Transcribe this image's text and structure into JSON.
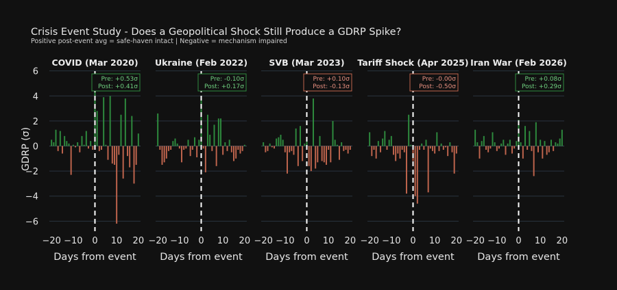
{
  "chart_data": {
    "type": "bar",
    "title": "Crisis Event Study - Does a Geopolitical Shock Still Produce a GDRP Spike?",
    "subtitle": "Positive post-event avg = safe-haven intact | Negative = mechanism impaired",
    "ylabel": "GDRP (σ)",
    "xlabel": "Days from event",
    "ylim": [
      -6.8,
      6.2
    ],
    "xlim": [
      -21,
      21
    ],
    "yticks": [
      6,
      4,
      2,
      0,
      -2,
      -4,
      -6
    ],
    "ytick_labels": [
      "6",
      "4",
      "2",
      "0",
      "−2",
      "−4",
      "−6"
    ],
    "xticks": [
      -20,
      -10,
      0,
      10,
      20
    ],
    "xtick_labels": [
      "−20",
      "−10",
      "0",
      "10",
      "20"
    ],
    "grid": true,
    "colors": {
      "positive": "#2e8b3e",
      "negative": "#c0654d",
      "annot_green_border": "#2e8b3e",
      "annot_green_text": "#6fcf7f",
      "annot_red_border": "#c0654d",
      "annot_red_text": "#e89080",
      "background": "#111111"
    },
    "panels": [
      {
        "title": "COVID (Mar 2020)",
        "annotation": {
          "pre": "Pre: +0.53σ",
          "post": "Post: +0.41σ",
          "color": "green"
        },
        "x": [
          -20,
          -19,
          -18,
          -17,
          -16,
          -15,
          -14,
          -13,
          -12,
          -11,
          -10,
          -9,
          -8,
          -7,
          -6,
          -5,
          -4,
          -3,
          -2,
          -1,
          0,
          1,
          2,
          3,
          4,
          5,
          6,
          7,
          8,
          9,
          10,
          11,
          12,
          13,
          14,
          15,
          16,
          17,
          18,
          19,
          20
        ],
        "values": [
          0.5,
          0.3,
          1.3,
          -0.4,
          1.2,
          -0.6,
          0.8,
          0.4,
          0.2,
          -2.3,
          0.1,
          -0.1,
          0.3,
          -0.5,
          0.8,
          0.1,
          1.2,
          -0.2,
          0.4,
          -0.3,
          5.9,
          2.8,
          -0.4,
          -0.3,
          3.9,
          0.1,
          -1.1,
          4.0,
          -1.4,
          -1.5,
          -6.2,
          -0.7,
          2.5,
          -2.6,
          3.8,
          -0.8,
          -1.7,
          2.4,
          -3.0,
          -1.5,
          1.0
        ]
      },
      {
        "title": "Ukraine (Feb 2022)",
        "annotation": {
          "pre": "Pre: -0.10σ",
          "post": "Post: +0.17σ",
          "color": "green"
        },
        "x": [
          -20,
          -19,
          -18,
          -17,
          -16,
          -15,
          -14,
          -13,
          -12,
          -11,
          -10,
          -9,
          -8,
          -7,
          -6,
          -5,
          -4,
          -3,
          -2,
          -1,
          0,
          1,
          2,
          3,
          4,
          5,
          6,
          7,
          8,
          9,
          10,
          11,
          12,
          13,
          14,
          15,
          16,
          17,
          18,
          19,
          20
        ],
        "values": [
          2.6,
          -0.3,
          -1.5,
          -1.3,
          -1.0,
          -0.4,
          -0.3,
          0.4,
          0.6,
          0.2,
          -0.2,
          -1.3,
          -0.3,
          -0.2,
          0.5,
          -0.8,
          -0.3,
          0.7,
          -0.9,
          0.5,
          3.9,
          -0.2,
          -2.1,
          2.5,
          0.9,
          -0.4,
          1.7,
          -1.6,
          2.2,
          2.2,
          -0.7,
          0.3,
          -0.4,
          0.5,
          -0.5,
          -1.2,
          -1.0,
          -0.3,
          -0.6,
          -0.4,
          0.1
        ]
      },
      {
        "title": "SVB (Mar 2023)",
        "annotation": {
          "pre": "Pre: +0.10σ",
          "post": "Post: -0.13σ",
          "color": "red"
        },
        "x": [
          -20,
          -19,
          -18,
          -17,
          -16,
          -15,
          -14,
          -13,
          -12,
          -11,
          -10,
          -9,
          -8,
          -7,
          -6,
          -5,
          -4,
          -3,
          -2,
          -1,
          0,
          1,
          2,
          3,
          4,
          5,
          6,
          7,
          8,
          9,
          10,
          11,
          12,
          13,
          14,
          15,
          16,
          17,
          18,
          19,
          20
        ],
        "values": [
          0.3,
          -0.5,
          -0.4,
          0.2,
          -0.1,
          -0.2,
          0.6,
          0.7,
          0.9,
          0.5,
          -0.5,
          -2.2,
          -0.5,
          -0.4,
          -0.7,
          1.4,
          -1.6,
          1.6,
          -1.2,
          0.2,
          0.4,
          -1.6,
          -2.0,
          3.8,
          -1.8,
          -1.3,
          0.8,
          -1.2,
          -1.3,
          -1.5,
          -0.3,
          -1.3,
          2.0,
          0.5,
          0.1,
          -1.1,
          0.3,
          -0.4,
          -0.3,
          -0.6,
          -0.3
        ]
      },
      {
        "title": "Tariff Shock (Apr 2025)",
        "annotation": {
          "pre": "Pre: -0.00σ",
          "post": "Post: -0.50σ",
          "color": "red"
        },
        "x": [
          -20,
          -19,
          -18,
          -17,
          -16,
          -15,
          -14,
          -13,
          -12,
          -11,
          -10,
          -9,
          -8,
          -7,
          -6,
          -5,
          -4,
          -3,
          -2,
          -1,
          0,
          1,
          2,
          3,
          4,
          5,
          6,
          7,
          8,
          9,
          10,
          11,
          12,
          13,
          14,
          15,
          16,
          17,
          18,
          19,
          20
        ],
        "values": [
          1.1,
          -0.8,
          -0.3,
          -1.0,
          0.4,
          -0.5,
          0.6,
          1.2,
          -0.3,
          0.5,
          0.8,
          -0.7,
          -1.2,
          -0.6,
          -1.0,
          -0.3,
          -0.5,
          -3.8,
          2.5,
          0.1,
          -1.2,
          -4.0,
          -4.6,
          -0.3,
          0.2,
          -0.3,
          0.5,
          -3.7,
          -0.2,
          -0.4,
          -0.6,
          1.1,
          -0.4,
          0.2,
          -0.3,
          -0.1,
          -0.8,
          0.3,
          -0.5,
          -2.2,
          -0.6
        ]
      },
      {
        "title": "Iran War (Feb 2026)",
        "annotation": {
          "pre": "Pre: +0.08σ",
          "post": "Post: +0.29σ",
          "color": "green"
        },
        "x": [
          -20,
          -19,
          -18,
          -17,
          -16,
          -15,
          -14,
          -13,
          -12,
          -11,
          -10,
          -9,
          -8,
          -7,
          -6,
          -5,
          -4,
          -3,
          -2,
          -1,
          0,
          1,
          2,
          3,
          4,
          5,
          6,
          7,
          8,
          9,
          10,
          11,
          12,
          13,
          14,
          15,
          16,
          17,
          18,
          19,
          20
        ],
        "values": [
          1.3,
          0.3,
          -1.0,
          0.4,
          0.8,
          -0.3,
          -0.5,
          -0.2,
          1.1,
          0.3,
          -0.4,
          -0.2,
          0.2,
          0.5,
          -0.7,
          0.2,
          0.5,
          -0.6,
          -0.2,
          0.4,
          2.1,
          0.3,
          -1.0,
          1.6,
          -0.3,
          1.2,
          -0.4,
          -2.4,
          1.9,
          -0.5,
          0.5,
          -1.0,
          0.4,
          -0.7,
          -0.5,
          0.5,
          -0.4,
          0.3,
          0.2,
          0.6,
          1.3
        ]
      }
    ]
  }
}
